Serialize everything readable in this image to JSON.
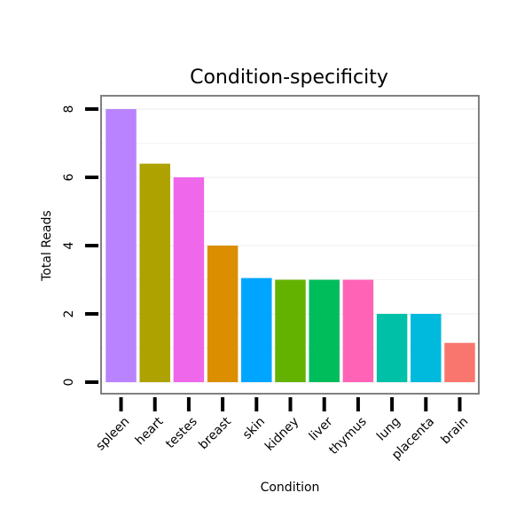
{
  "chart_data": {
    "type": "bar",
    "title": "Condition-specificity",
    "xlabel": "Condition",
    "ylabel": "Total Reads",
    "categories": [
      "spleen",
      "heart",
      "testes",
      "breast",
      "skin",
      "kidney",
      "liver",
      "thymus",
      "lung",
      "placenta",
      "brain"
    ],
    "values": [
      8,
      6.4,
      6,
      4,
      3.05,
      3,
      3,
      3,
      2,
      2,
      1.15
    ],
    "colors": [
      "#B983FF",
      "#ADA200",
      "#EF67EB",
      "#DB8E00",
      "#00A5FF",
      "#64B200",
      "#00BD5C",
      "#FF63B6",
      "#00C1A7",
      "#00BADE",
      "#F8766D"
    ],
    "ylim": [
      0,
      8
    ],
    "yticks": [
      0,
      2,
      4,
      6,
      8
    ],
    "grid": true,
    "legend": "none"
  }
}
